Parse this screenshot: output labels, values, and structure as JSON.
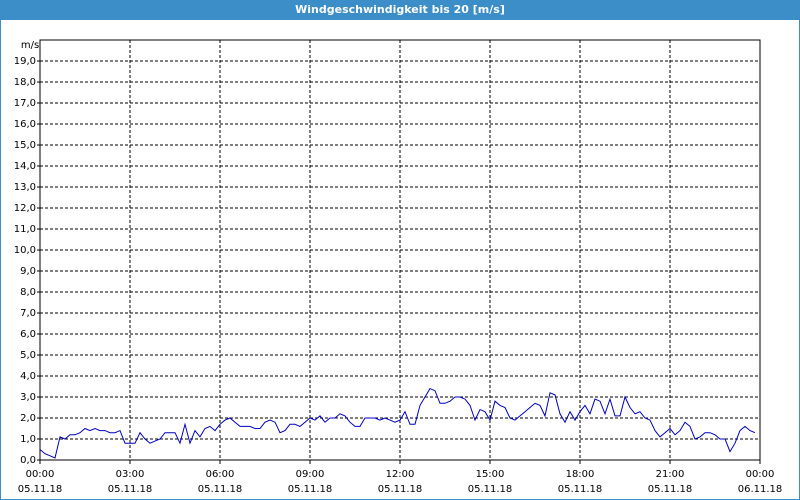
{
  "chart_data": {
    "type": "line",
    "title": "Windgeschwindigkeit bis 20 [m/s]",
    "y_label": "m/s",
    "xlim": [
      0,
      1440
    ],
    "ylim": [
      0,
      20
    ],
    "xticks": [
      {
        "value": 0,
        "label": "00:00",
        "date": "05.11.18"
      },
      {
        "value": 180,
        "label": "03:00",
        "date": "05.11.18"
      },
      {
        "value": 360,
        "label": "06:00",
        "date": "05.11.18"
      },
      {
        "value": 540,
        "label": "09:00",
        "date": "05.11.18"
      },
      {
        "value": 720,
        "label": "12:00",
        "date": "05.11.18"
      },
      {
        "value": 900,
        "label": "15:00",
        "date": "05.11.18"
      },
      {
        "value": 1080,
        "label": "18:00",
        "date": "05.11.18"
      },
      {
        "value": 1260,
        "label": "21:00",
        "date": "05.11.18"
      },
      {
        "value": 1440,
        "label": "00:00",
        "date": "06.11.18"
      }
    ],
    "yticks": [
      {
        "value": 0,
        "label": "0,0"
      },
      {
        "value": 1,
        "label": "1,0"
      },
      {
        "value": 2,
        "label": "2,0"
      },
      {
        "value": 3,
        "label": "3,0"
      },
      {
        "value": 4,
        "label": "4,0"
      },
      {
        "value": 5,
        "label": "5,0"
      },
      {
        "value": 6,
        "label": "6,0"
      },
      {
        "value": 7,
        "label": "7,0"
      },
      {
        "value": 8,
        "label": "8,0"
      },
      {
        "value": 9,
        "label": "9,0"
      },
      {
        "value": 10,
        "label": "10,0"
      },
      {
        "value": 11,
        "label": "11,0"
      },
      {
        "value": 12,
        "label": "12,0"
      },
      {
        "value": 13,
        "label": "13,0"
      },
      {
        "value": 14,
        "label": "14,0"
      },
      {
        "value": 15,
        "label": "15,0"
      },
      {
        "value": 16,
        "label": "16,0"
      },
      {
        "value": 17,
        "label": "17,0"
      },
      {
        "value": 18,
        "label": "18,0"
      },
      {
        "value": 19,
        "label": "19,0"
      }
    ],
    "grid": true,
    "x": [
      0,
      10,
      20,
      30,
      40,
      50,
      60,
      70,
      80,
      90,
      100,
      110,
      120,
      130,
      140,
      150,
      160,
      170,
      180,
      190,
      200,
      210,
      220,
      230,
      240,
      250,
      260,
      270,
      280,
      290,
      300,
      310,
      320,
      330,
      340,
      350,
      360,
      370,
      380,
      390,
      400,
      410,
      420,
      430,
      440,
      450,
      460,
      470,
      480,
      490,
      500,
      510,
      520,
      530,
      540,
      550,
      560,
      570,
      580,
      590,
      600,
      610,
      620,
      630,
      640,
      650,
      660,
      670,
      680,
      690,
      700,
      710,
      720,
      730,
      740,
      750,
      760,
      770,
      780,
      790,
      800,
      810,
      820,
      830,
      840,
      850,
      860,
      870,
      880,
      890,
      900,
      910,
      920,
      930,
      940,
      950,
      960,
      970,
      980,
      990,
      1000,
      1010,
      1020,
      1030,
      1040,
      1050,
      1060,
      1070,
      1080,
      1090,
      1100,
      1110,
      1120,
      1130,
      1140,
      1150,
      1160,
      1170,
      1180,
      1190,
      1200,
      1210,
      1220,
      1230,
      1240,
      1250,
      1260,
      1270,
      1280,
      1290,
      1300,
      1310,
      1320,
      1330,
      1340,
      1350,
      1360,
      1370,
      1380,
      1390,
      1400,
      1410,
      1420,
      1430
    ],
    "series": [
      {
        "name": "Windgeschwindigkeit",
        "color": "#0000c0",
        "values": [
          0.5,
          0.3,
          0.2,
          0.1,
          1.1,
          1.0,
          1.2,
          1.2,
          1.3,
          1.5,
          1.4,
          1.5,
          1.4,
          1.4,
          1.3,
          1.3,
          1.4,
          0.8,
          0.8,
          0.8,
          1.3,
          1.0,
          0.8,
          0.9,
          1.0,
          1.3,
          1.3,
          1.3,
          0.8,
          1.7,
          0.8,
          1.4,
          1.1,
          1.5,
          1.6,
          1.4,
          1.7,
          1.9,
          2.0,
          1.8,
          1.6,
          1.6,
          1.6,
          1.5,
          1.5,
          1.8,
          1.9,
          1.8,
          1.3,
          1.4,
          1.7,
          1.7,
          1.6,
          1.8,
          2.0,
          1.9,
          2.1,
          1.8,
          2.0,
          2.0,
          2.2,
          2.1,
          1.8,
          1.6,
          1.6,
          2.0,
          2.0,
          2.0,
          1.9,
          2.0,
          1.9,
          1.8,
          1.9,
          2.3,
          1.7,
          1.7,
          2.6,
          3.0,
          3.4,
          3.3,
          2.7,
          2.7,
          2.8,
          3.0,
          3.0,
          2.9,
          2.6,
          1.9,
          2.4,
          2.3,
          1.9,
          2.8,
          2.6,
          2.5,
          2.0,
          1.9,
          2.1,
          2.3,
          2.5,
          2.7,
          2.6,
          2.1,
          3.2,
          3.1,
          2.2,
          1.8,
          2.3,
          1.9,
          2.3,
          2.6,
          2.2,
          2.9,
          2.8,
          2.2,
          2.9,
          2.1,
          2.1,
          3.0,
          2.5,
          2.2,
          2.3,
          2.0,
          1.9,
          1.4,
          1.1,
          1.3,
          1.5,
          1.2,
          1.4,
          1.8,
          1.6,
          1.0,
          1.1,
          1.3,
          1.3,
          1.2,
          1.0,
          1.0,
          0.4,
          0.8,
          1.4,
          1.6,
          1.4,
          1.3
        ]
      }
    ]
  }
}
